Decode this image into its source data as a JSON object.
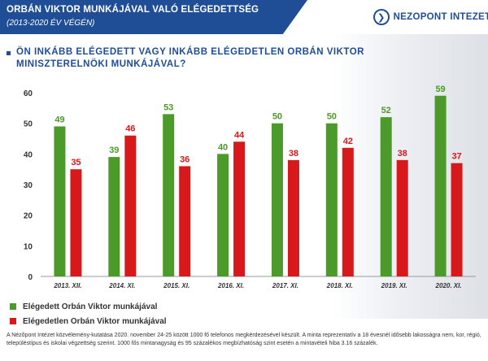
{
  "header": {
    "title": "ORBÁN VIKTOR MUNKÁJÁVAL VALÓ ELÉGEDETTSÉG",
    "subtitle": "(2013-2020 ÉV VÉGÉN)"
  },
  "logo": {
    "text": "NÉZŐPONT INTÉZET",
    "icon": "nezopont-logo-icon"
  },
  "question": "ÖN INKÁBB ELÉGEDETT VAGY INKÁBB ELÉGEDETLEN ORBÁN VIKTOR MINISZTERELNÖKI MUNKÁJÁVAL?",
  "colors": {
    "accent": "#1f4e96",
    "satisfied": "#4c9a2a",
    "dissatisfied": "#d7191c"
  },
  "chart_data": {
    "type": "bar",
    "categories": [
      "2013. XII.",
      "2014. XI.",
      "2015. XI.",
      "2016. XI.",
      "2017. XI.",
      "2018. XI.",
      "2019. XI.",
      "2020. XI."
    ],
    "series": [
      {
        "name": "Elégedett Orbán Viktor munkájával",
        "color": "#4c9a2a",
        "values": [
          49,
          39,
          53,
          40,
          50,
          50,
          52,
          59
        ]
      },
      {
        "name": "Elégedetlen Orbán Viktor munkájával",
        "color": "#d7191c",
        "values": [
          35,
          46,
          36,
          44,
          38,
          42,
          38,
          37
        ]
      }
    ],
    "yticks": [
      0,
      10,
      20,
      30,
      40,
      50,
      60
    ],
    "ylim": [
      0,
      60
    ],
    "grid": false,
    "legend_position": "bottom-left",
    "xlabel": "",
    "ylabel": ""
  },
  "footnote": "A Nézőpont Intézet közvélemény-kutatása 2020. november 24-25 között 1000 fő telefonos megkérdezésével készült. A minta reprezentatív a 18 évesnél idősebb lakosságra nem, kor, régió, településtípus és iskolai végzettség szerint. 1000 fős mintanagyság és 95 százalékos megbízhatóság szint esetén a mintavételi hiba 3.16 százalék."
}
